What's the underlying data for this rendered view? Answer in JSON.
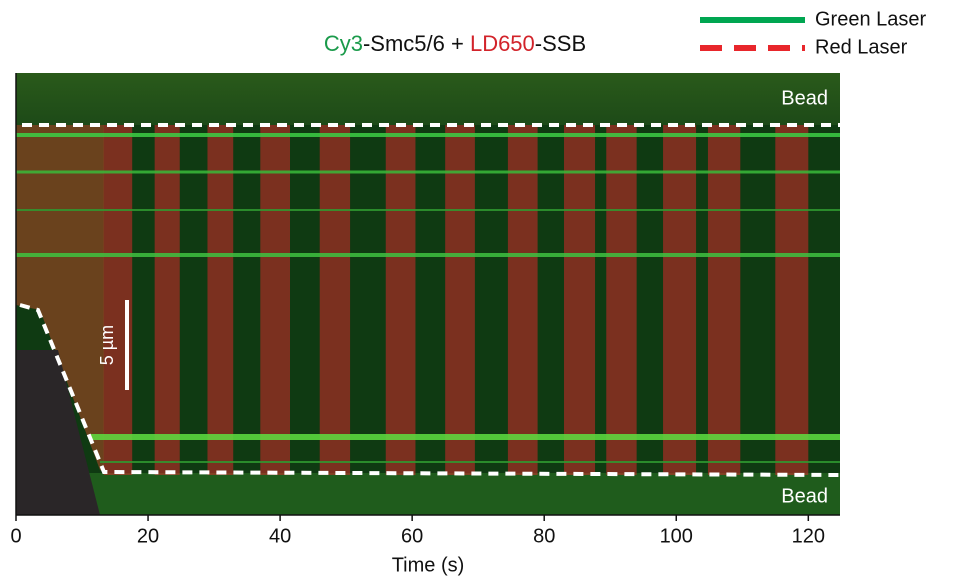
{
  "chart_data": {
    "type": "kymograph",
    "title": [
      {
        "text": "Cy3",
        "color": "#1a9a4a"
      },
      {
        "text": "-Smc5/6 + ",
        "color": "#111111"
      },
      {
        "text": "LD650",
        "color": "#d2232a"
      },
      {
        "text": "-SSB",
        "color": "#111111"
      }
    ],
    "x_label": "Time (s)",
    "xlim": [
      0,
      124.8
    ],
    "xticks": [
      0,
      20,
      40,
      60,
      80,
      100,
      120
    ],
    "annotations": [
      "Bead",
      "Bead",
      "5 µm"
    ],
    "series": [
      {
        "name": "Green Laser",
        "color": "#00a651",
        "style": "solid"
      },
      {
        "name": "Red Laser",
        "color": "#e8262b",
        "style": "dashed",
        "intervals": [
          [
            13.3,
            17.6
          ],
          [
            21,
            24.8
          ],
          [
            29,
            32.9
          ],
          [
            37,
            41.5
          ],
          [
            46,
            50.6
          ],
          [
            56,
            60.5
          ],
          [
            65,
            69.5
          ],
          [
            74.5,
            79
          ],
          [
            83,
            87.7
          ],
          [
            89.4,
            94
          ],
          [
            98,
            103
          ],
          [
            104.8,
            109.7
          ],
          [
            115,
            120
          ]
        ]
      }
    ]
  }
}
